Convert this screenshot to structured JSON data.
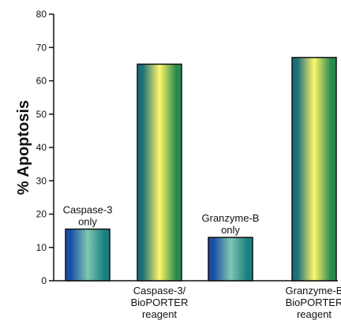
{
  "chart_data": {
    "type": "bar",
    "categories": [
      [
        "Caspase-3",
        "only"
      ],
      [
        "Caspase-3/",
        "BioPORTER",
        "reagent"
      ],
      [
        "Granzyme-B",
        "only"
      ],
      [
        "Granzyme-B",
        "BioPORTER",
        "reagent"
      ]
    ],
    "label_positions": [
      "above",
      "below",
      "above",
      "below"
    ],
    "values": [
      15.5,
      65,
      13,
      67
    ],
    "ylabel": "% Apoptosis",
    "ylim": [
      0,
      80
    ],
    "yticks": [
      0,
      10,
      20,
      30,
      40,
      50,
      60,
      70,
      80
    ],
    "grid": false,
    "bar_colors": [
      {
        "left": "#1a4fa8",
        "mid": "#7fc7b0",
        "right": "#1a7f82"
      },
      {
        "left": "#1c6e7a",
        "mid": "#fff66a",
        "right": "#2a8a4e"
      },
      {
        "left": "#1a4fa8",
        "mid": "#7fc7b0",
        "right": "#1a7f82"
      },
      {
        "left": "#1c6e7a",
        "mid": "#fff66a",
        "right": "#2a8a4e"
      }
    ]
  }
}
